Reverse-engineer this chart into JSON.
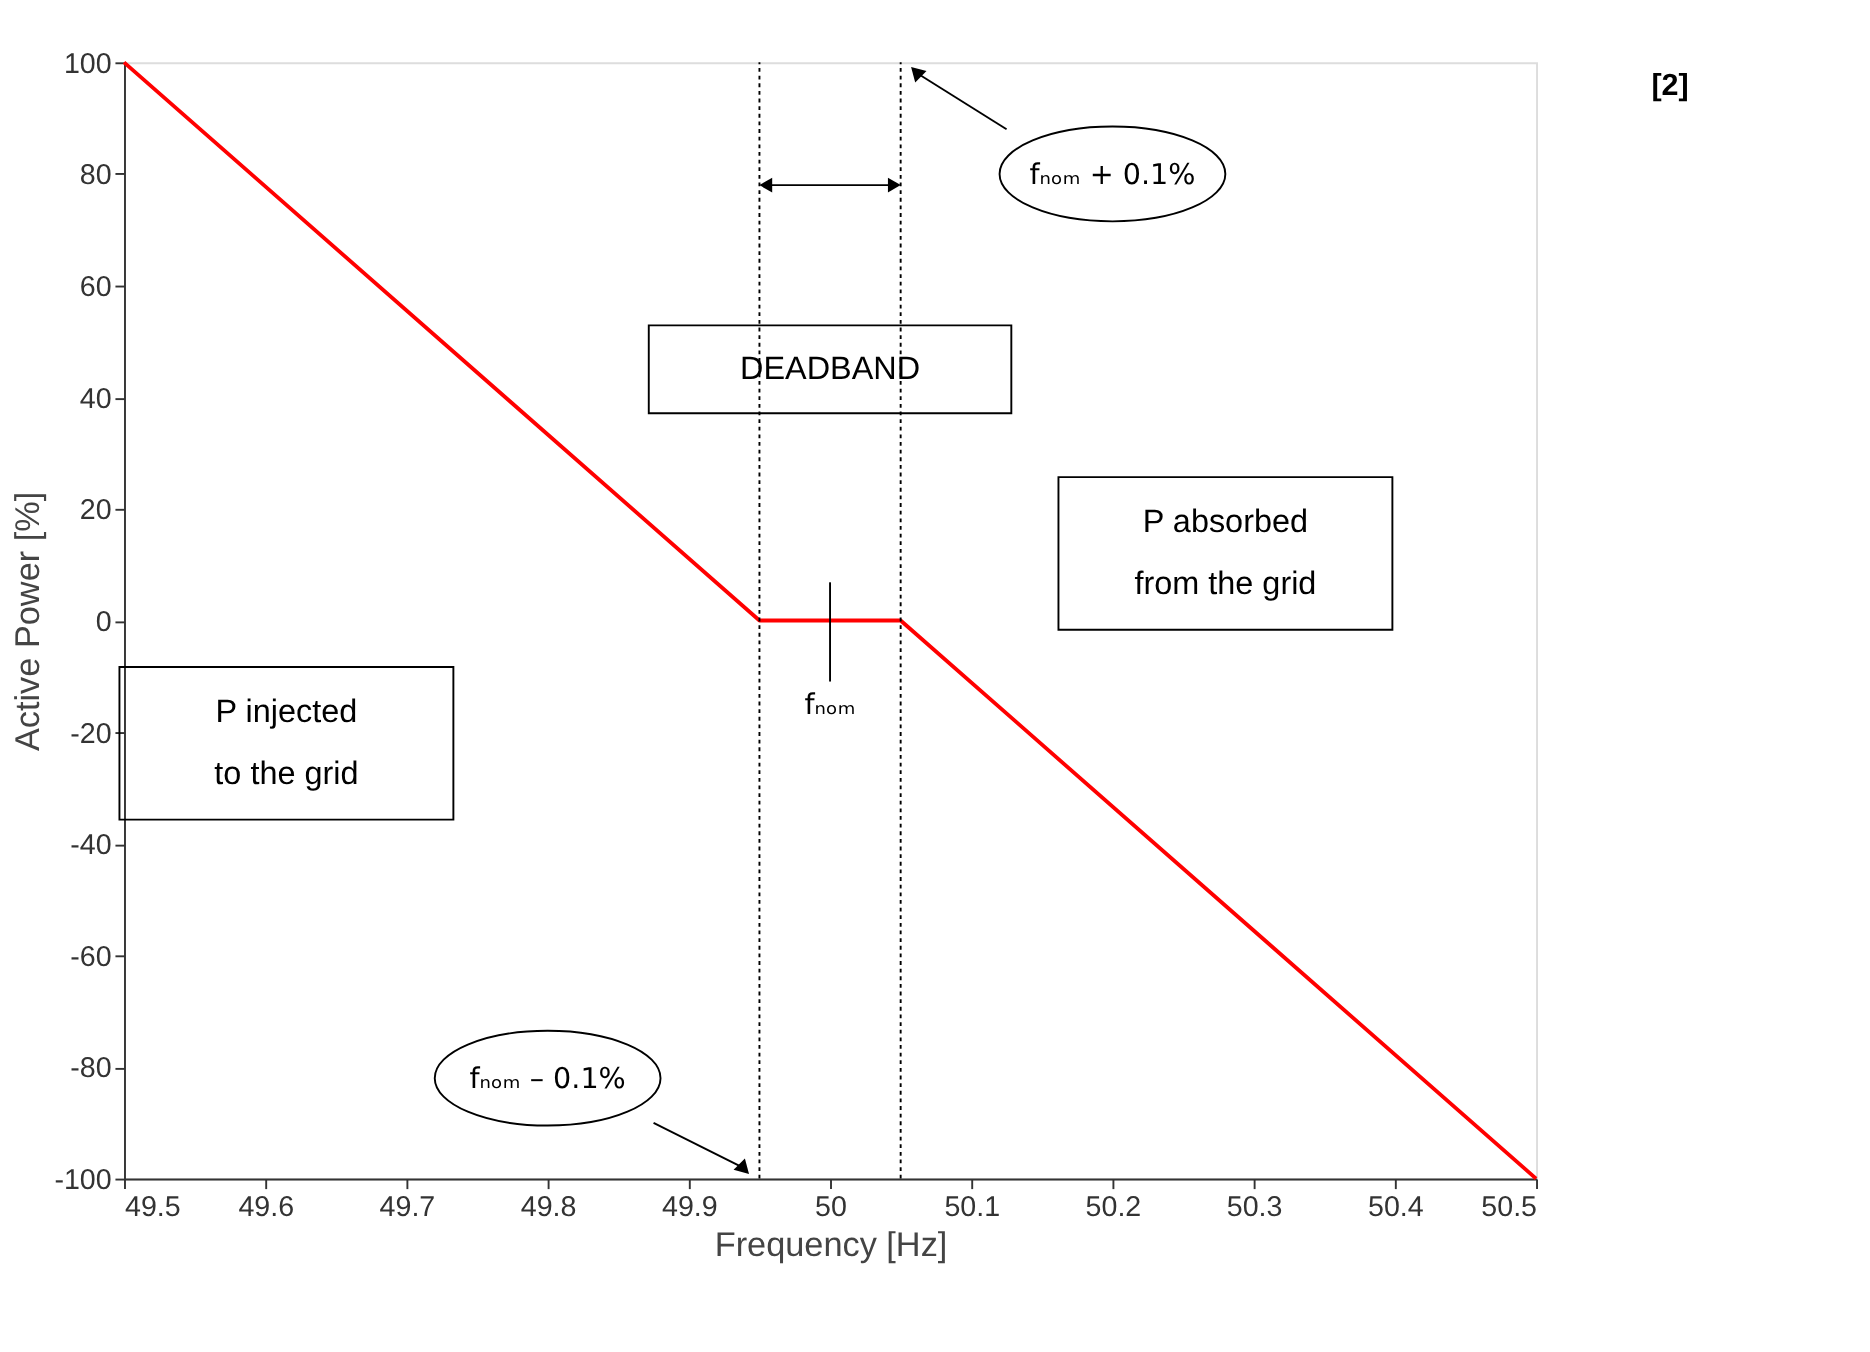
{
  "chart_data": {
    "type": "line",
    "xlabel": "Frequency [Hz]",
    "ylabel": "Active Power [%]",
    "x": [
      49.5,
      49.95,
      50.05,
      50.5
    ],
    "series": [
      {
        "color": "#ff0000",
        "values": [
          100,
          0,
          0,
          -100
        ]
      }
    ],
    "xlim": [
      49.5,
      50.5
    ],
    "xticks": [
      49.5,
      49.6,
      49.7,
      49.8,
      49.9,
      50,
      50.1,
      50.2,
      50.3,
      50.4,
      50.5
    ],
    "ylim": [
      -100,
      100
    ],
    "yticks": [
      -100,
      -80,
      -60,
      -40,
      -20,
      0,
      20,
      40,
      60,
      80,
      100
    ],
    "grid": false,
    "marker": "none",
    "line_style": "solid",
    "ref_lines": [
      {
        "axis": "x",
        "value": 49.95,
        "color": "#000000",
        "line_style": "dotted"
      },
      {
        "axis": "x",
        "value": 50.05,
        "color": "#000000",
        "line_style": "dotted"
      }
    ],
    "annotations": [
      "[2]",
      "DEADBAND",
      "P injected to the grid",
      "P absorbed from the grid",
      {
        "text": "fₙₒₘ",
        "x": 50,
        "y": 0
      },
      "fₙₒₘ – 0.1%",
      "fₙₒₘ + 0.1%"
    ]
  }
}
